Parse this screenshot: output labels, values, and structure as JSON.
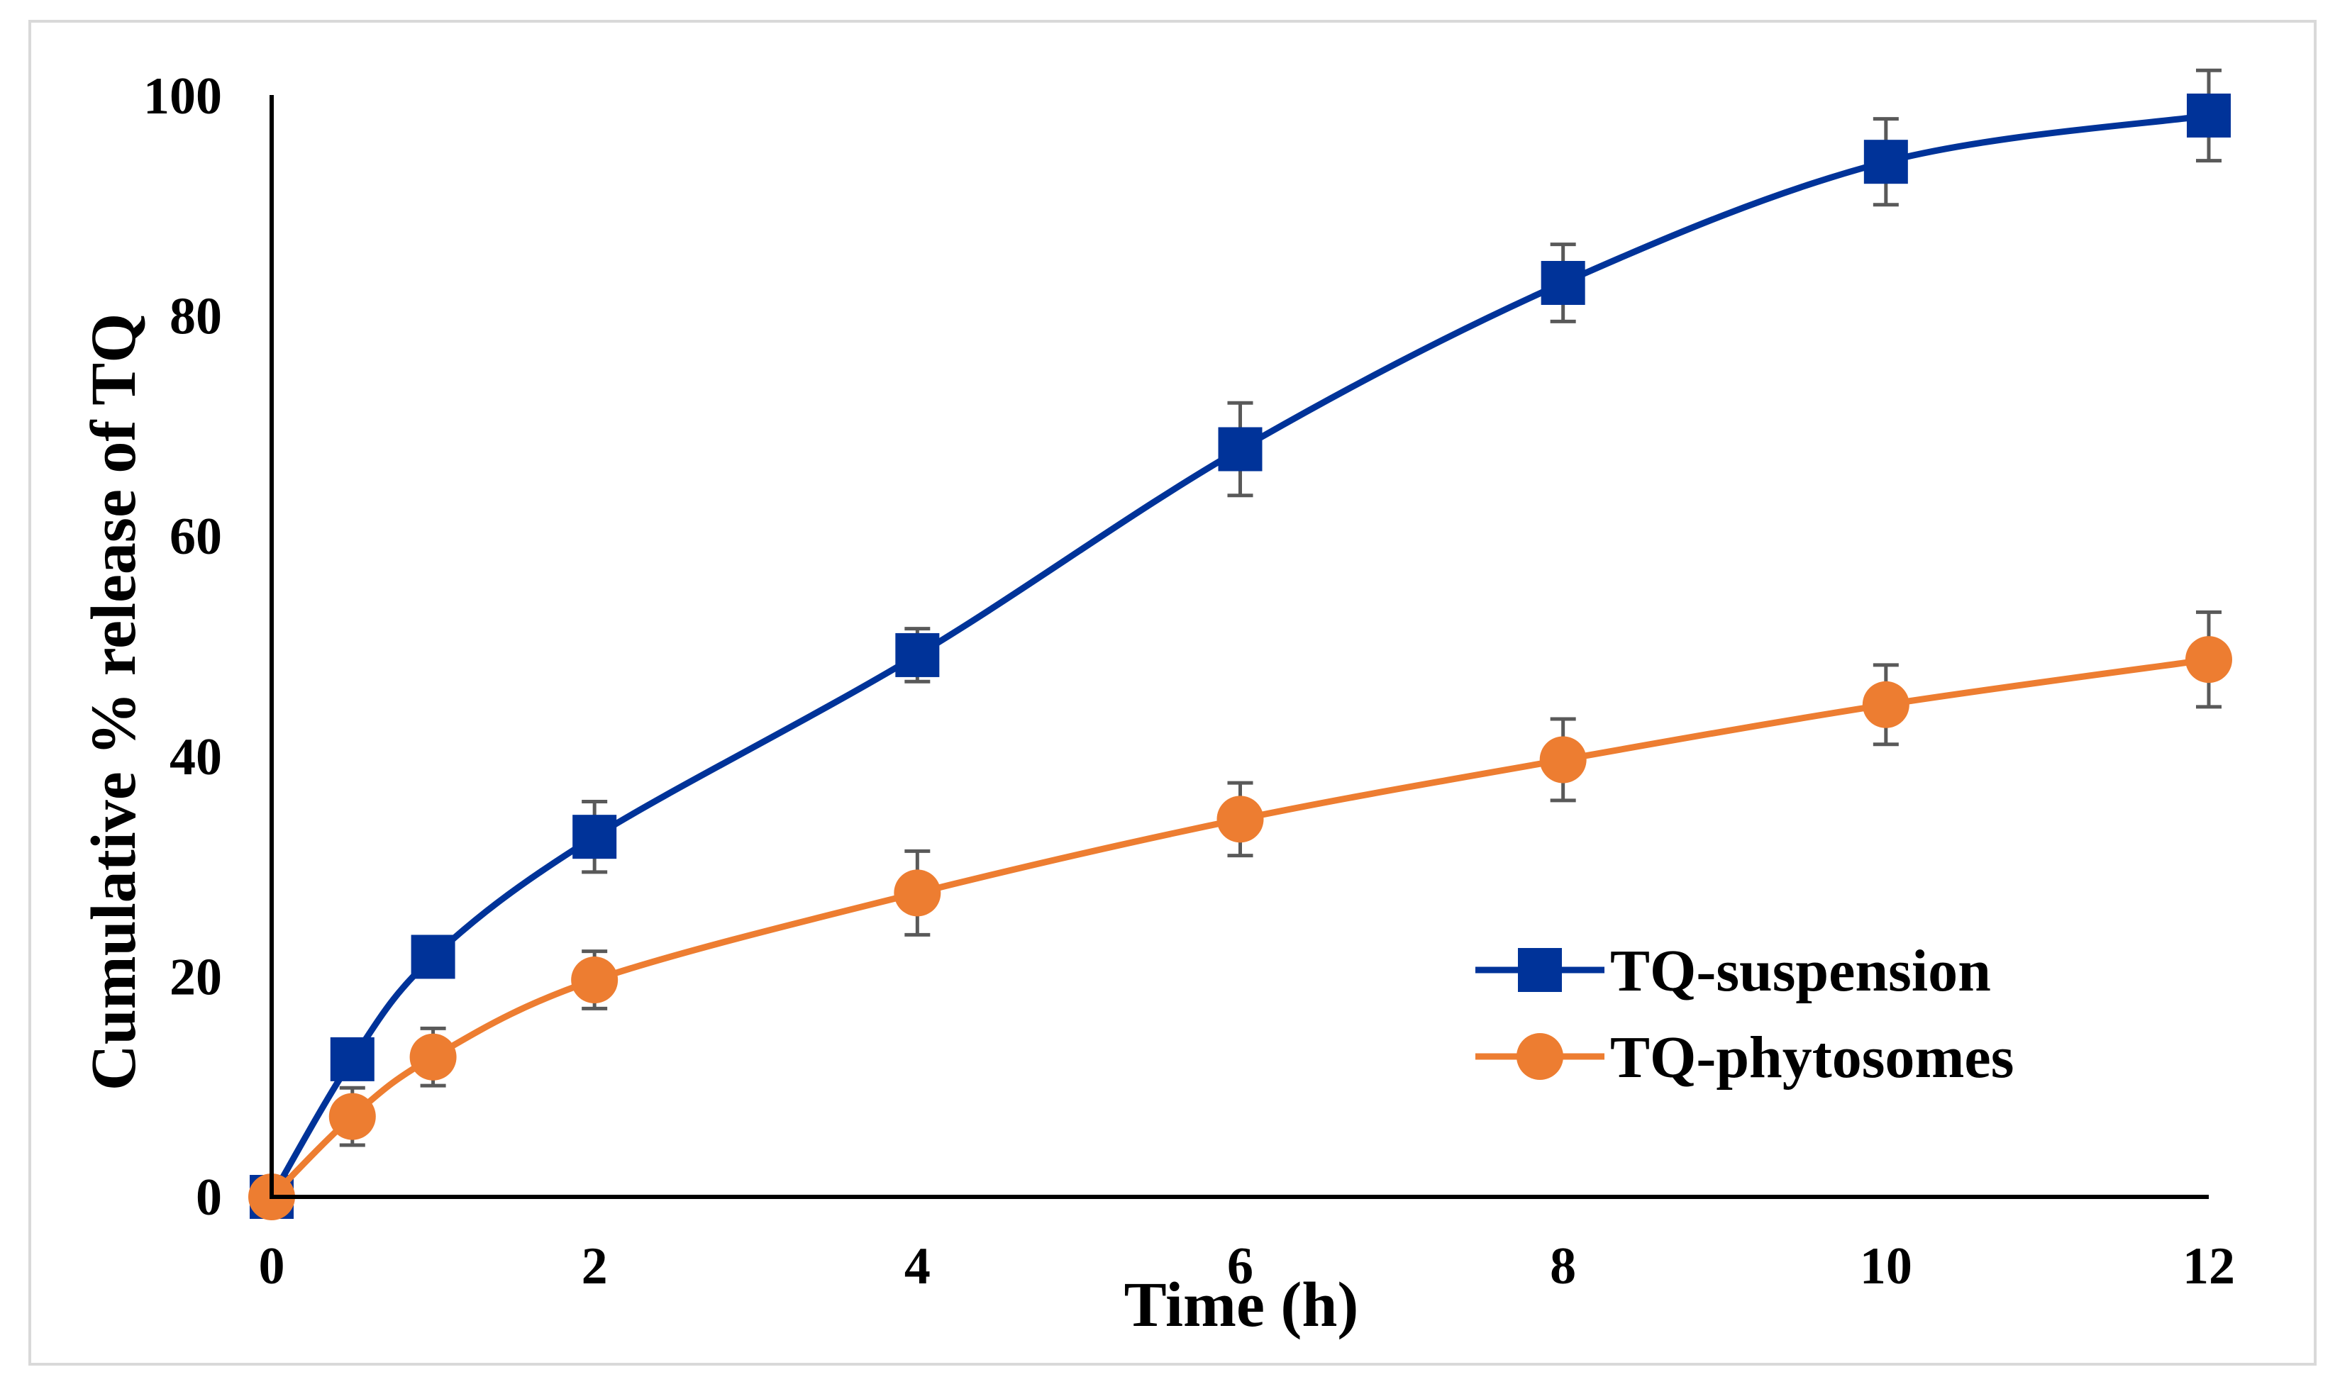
{
  "chart_data": {
    "type": "line",
    "title": "",
    "xlabel": "Time (h)",
    "ylabel": "Cumulative % release of TQ",
    "xlim": [
      0,
      12
    ],
    "ylim": [
      0,
      100
    ],
    "x_ticks": [
      0,
      2,
      4,
      6,
      8,
      10,
      12
    ],
    "y_ticks": [
      0,
      20,
      40,
      60,
      80,
      100
    ],
    "x_tick_labels": [
      "0",
      "2",
      "4",
      "6",
      "8",
      "10",
      "12"
    ],
    "y_tick_labels": [
      "0",
      "20",
      "40",
      "60",
      "80",
      "100"
    ],
    "grid": false,
    "legend_position": "bottom-right",
    "series": [
      {
        "name": "TQ-suspension",
        "marker": "square",
        "color": "#003399",
        "x": [
          0,
          0.5,
          1,
          2,
          4,
          6,
          8,
          10,
          12
        ],
        "values": [
          0,
          12.5,
          21.8,
          32.7,
          49.2,
          67.9,
          83,
          94,
          98.2
        ],
        "errors": [
          0,
          1.5,
          1.5,
          3.2,
          2.4,
          4.2,
          3.5,
          3.9,
          4.1
        ]
      },
      {
        "name": "TQ-phytosomes",
        "marker": "circle",
        "color": "#ed7d31",
        "x": [
          0,
          0.5,
          1,
          2,
          4,
          6,
          8,
          10,
          12
        ],
        "values": [
          0,
          7.3,
          12.7,
          19.7,
          27.6,
          34.3,
          39.7,
          44.7,
          48.8
        ],
        "errors": [
          0,
          2.6,
          2.6,
          2.6,
          3.8,
          3.3,
          3.7,
          3.6,
          4.3
        ]
      }
    ],
    "error_bar_color": "#595959"
  }
}
